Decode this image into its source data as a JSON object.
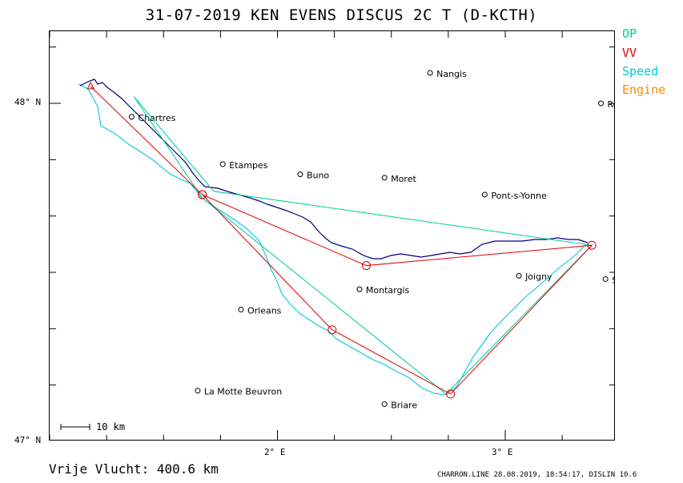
{
  "title": "31-07-2019   KEN EVENS   DISCUS 2C T (D-KCTH)",
  "legend": [
    {
      "label": "OP",
      "color": "#00cc99"
    },
    {
      "label": "VV",
      "color": "#dd0000"
    },
    {
      "label": "Speed",
      "color": "#00c8e0"
    },
    {
      "label": "Engine",
      "color": "#ff8800"
    }
  ],
  "axes": {
    "y_labels": [
      "48° N",
      "47° N"
    ],
    "x_labels": [
      "2° E",
      "3° E"
    ]
  },
  "scale_bar": "10 km",
  "distance_label": "Vrije Vlucht:  400.6 km",
  "footer": "CHARRON.LINE 28.08.2019, 18:54:17, DISLIN 10.6",
  "towns": [
    {
      "name": "Nangis",
      "lon": 2.67,
      "lat": 48.09
    },
    {
      "name": "Chartres",
      "lon": 1.36,
      "lat": 47.96
    },
    {
      "name": "Etampes",
      "lon": 1.76,
      "lat": 47.82
    },
    {
      "name": "Buno",
      "lon": 2.1,
      "lat": 47.79
    },
    {
      "name": "Moret",
      "lon": 2.47,
      "lat": 47.78
    },
    {
      "name": "Pont-s-Yonne",
      "lon": 2.91,
      "lat": 47.73
    },
    {
      "name": "Montargis",
      "lon": 2.36,
      "lat": 47.45
    },
    {
      "name": "Joigny",
      "lon": 3.06,
      "lat": 47.49
    },
    {
      "name": "Orleans",
      "lon": 1.84,
      "lat": 47.39
    },
    {
      "name": "La Motte Beuvron",
      "lon": 1.65,
      "lat": 47.15
    },
    {
      "name": "Briare",
      "lon": 2.47,
      "lat": 47.11
    },
    {
      "name": "Ro",
      "lon": 3.42,
      "lat": 48.0
    },
    {
      "name": "S",
      "lon": 3.44,
      "lat": 47.48
    }
  ],
  "task": {
    "op_color": "#00cc99",
    "vv_color": "#dd0000",
    "track_color": "#000080",
    "speed_color": "#00c8e0",
    "vv_turnpoints": [
      {
        "lon": 1.18,
        "lat": 48.05
      },
      {
        "lon": 1.67,
        "lat": 47.73
      },
      {
        "lon": 2.39,
        "lat": 47.52
      },
      {
        "lon": 3.38,
        "lat": 47.58
      },
      {
        "lon": 2.76,
        "lat": 47.14
      },
      {
        "lon": 2.24,
        "lat": 47.33
      },
      {
        "lon": 1.67,
        "lat": 47.73
      },
      {
        "lon": 1.18,
        "lat": 48.05
      }
    ],
    "op_turnpoints": [
      {
        "lon": 1.37,
        "lat": 48.02
      },
      {
        "lon": 1.72,
        "lat": 47.74
      },
      {
        "lon": 3.38,
        "lat": 47.58
      },
      {
        "lon": 2.74,
        "lat": 47.14
      },
      {
        "lon": 1.67,
        "lat": 47.72
      },
      {
        "lon": 1.37,
        "lat": 48.02
      }
    ]
  }
}
